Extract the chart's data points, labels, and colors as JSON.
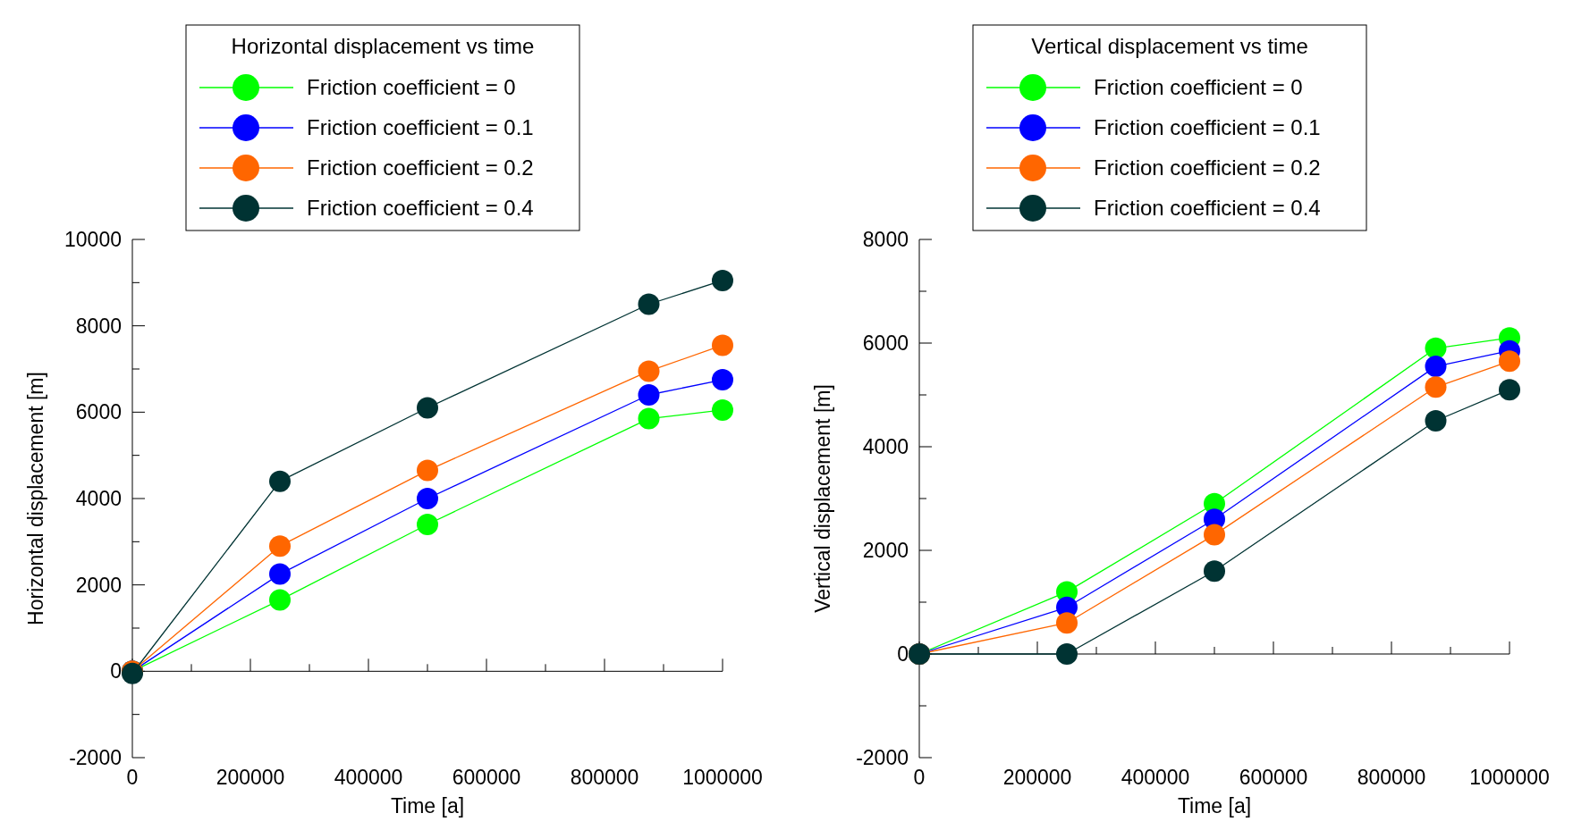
{
  "chart_data": [
    {
      "type": "line",
      "legend_title": "Horizontal displacement vs time",
      "xlabel": "Time [a]",
      "ylabel": "Horizontal displacement [m]",
      "x": [
        0,
        250000,
        500000,
        875000,
        1000000
      ],
      "marker": "circle",
      "legend": "top",
      "xlim": [
        0,
        1000000
      ],
      "ylim": [
        -2000,
        10000
      ],
      "xticks": [
        0,
        {
          "value": 100000,
          "label": null
        },
        200000,
        {
          "value": 300000,
          "label": null
        },
        400000,
        {
          "value": 500000,
          "label": null
        },
        600000,
        {
          "value": 700000,
          "label": null
        },
        800000,
        {
          "value": 900000,
          "label": null
        },
        1000000
      ],
      "yticks": [
        -2000,
        {
          "value": -1000,
          "label": null
        },
        0,
        {
          "value": 1000,
          "label": null
        },
        2000,
        {
          "value": 3000,
          "label": null
        },
        4000,
        {
          "value": 5000,
          "label": null
        },
        6000,
        {
          "value": 7000,
          "label": null
        },
        8000,
        {
          "value": 9000,
          "label": null
        },
        10000
      ],
      "series": [
        {
          "name": "Friction coefficient = 0",
          "color": "#00ff00",
          "values": [
            0,
            1650,
            3400,
            5850,
            6050
          ]
        },
        {
          "name": "Friction coefficient = 0.1",
          "color": "#0000ff",
          "values": [
            0,
            2250,
            4000,
            6400,
            6750
          ]
        },
        {
          "name": "Friction coefficient = 0.2",
          "color": "#ff6600",
          "values": [
            0,
            2900,
            4650,
            6950,
            7550
          ]
        },
        {
          "name": "Friction coefficient = 0.4",
          "color": "#003333",
          "values": [
            -50,
            4400,
            6100,
            8500,
            9050
          ]
        }
      ]
    },
    {
      "type": "line",
      "legend_title": "Vertical displacement vs time",
      "xlabel": "Time [a]",
      "ylabel": "Vertical displacement [m]",
      "x": [
        0,
        250000,
        500000,
        875000,
        1000000
      ],
      "marker": "circle",
      "legend": "top",
      "xlim": [
        0,
        1000000
      ],
      "ylim": [
        -2000,
        8000
      ],
      "xticks": [
        0,
        {
          "value": 100000,
          "label": null
        },
        200000,
        {
          "value": 300000,
          "label": null
        },
        400000,
        {
          "value": 500000,
          "label": null
        },
        600000,
        {
          "value": 700000,
          "label": null
        },
        800000,
        {
          "value": 900000,
          "label": null
        },
        1000000
      ],
      "yticks": [
        -2000,
        {
          "value": -1000,
          "label": null
        },
        0,
        {
          "value": 1000,
          "label": null
        },
        2000,
        {
          "value": 3000,
          "label": null
        },
        4000,
        {
          "value": 5000,
          "label": null
        },
        6000,
        {
          "value": 7000,
          "label": null
        },
        8000
      ],
      "series": [
        {
          "name": "Friction coefficient = 0",
          "color": "#00ff00",
          "values": [
            0,
            1200,
            2900,
            5900,
            6100
          ]
        },
        {
          "name": "Friction coefficient = 0.1",
          "color": "#0000ff",
          "values": [
            0,
            900,
            2600,
            5550,
            5850
          ]
        },
        {
          "name": "Friction coefficient = 0.2",
          "color": "#ff6600",
          "values": [
            0,
            600,
            2300,
            5150,
            5650
          ]
        },
        {
          "name": "Friction coefficient = 0.4",
          "color": "#003333",
          "values": [
            0,
            0,
            1600,
            4500,
            5100
          ]
        }
      ]
    }
  ]
}
